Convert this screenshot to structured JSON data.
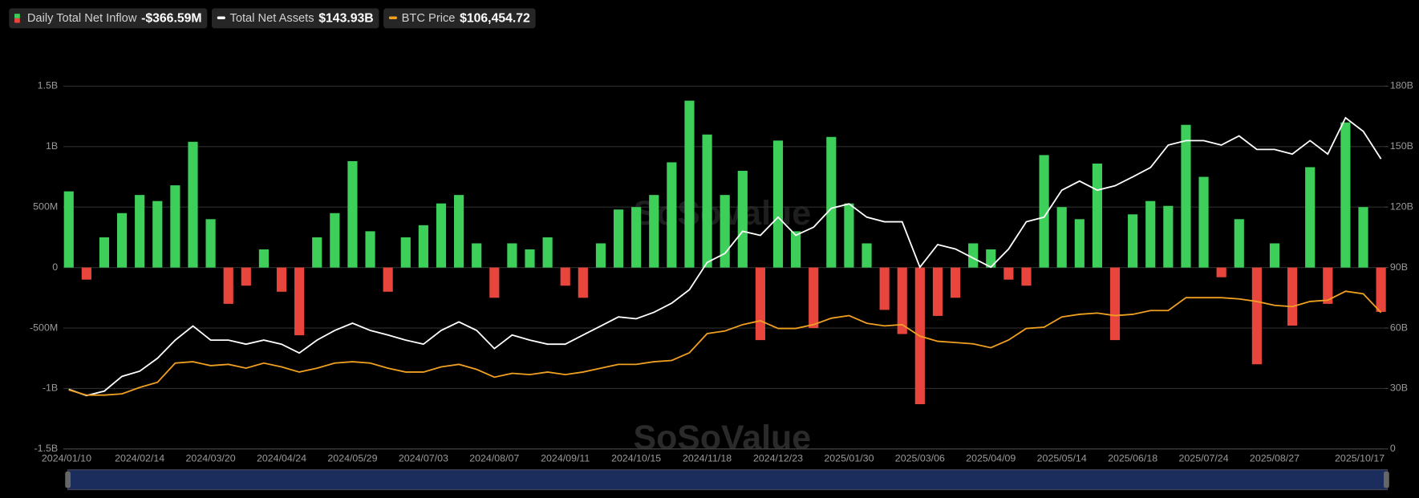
{
  "chart_data": {
    "type": "bar-line",
    "watermark": "SoSoValue",
    "categories": [
      "2024/01/10",
      null,
      null,
      null,
      "2024/02/14",
      null,
      null,
      null,
      "2024/03/20",
      null,
      null,
      null,
      "2024/04/24",
      null,
      null,
      null,
      "2024/05/29",
      null,
      null,
      null,
      "2024/07/03",
      null,
      null,
      null,
      "2024/08/07",
      null,
      null,
      null,
      "2024/09/11",
      null,
      null,
      null,
      "2024/10/15",
      null,
      null,
      null,
      "2024/11/18",
      null,
      null,
      null,
      "2024/12/23",
      null,
      null,
      null,
      "2025/01/30",
      null,
      null,
      null,
      "2025/03/06",
      null,
      null,
      null,
      "2025/04/09",
      null,
      null,
      null,
      "2025/05/14",
      null,
      null,
      null,
      "2025/06/18",
      null,
      null,
      null,
      "2025/07/24",
      null,
      null,
      null,
      "2025/08/27",
      null,
      null,
      null,
      null,
      null,
      "2025/10/17"
    ],
    "ylim": [
      -1500000000,
      1500000000
    ],
    "yticks": [
      {
        "value": -1500000000,
        "label": "-1.5B"
      },
      {
        "value": -1000000000,
        "label": "-1B"
      },
      {
        "value": -500000000,
        "label": "-500M"
      },
      0,
      {
        "value": 500000000,
        "label": "500M"
      },
      {
        "value": 1000000000,
        "label": "1B"
      },
      {
        "value": 1500000000,
        "label": "1.5B"
      }
    ],
    "y2lim": [
      0,
      180000000000
    ],
    "y2ticks": [
      0,
      {
        "value": 30000000000,
        "label": "30B"
      },
      {
        "value": 60000000000,
        "label": "60B"
      },
      {
        "value": 90000000000,
        "label": "90B"
      },
      {
        "value": 120000000000,
        "label": "120B"
      },
      {
        "value": 150000000000,
        "label": "150B"
      },
      {
        "value": 180000000000,
        "label": "180B"
      }
    ],
    "y3lim": [
      0,
      283000
    ],
    "grid": true,
    "series": [
      {
        "name": "Daily Total Net Inflow",
        "type": "bar",
        "color": "#3ecf5a",
        "negative_color": "#e8453c",
        "latest_label": "-$366.59M",
        "values": [
          630000000,
          -100000000,
          250000000,
          450000000,
          600000000,
          550000000,
          680000000,
          1040000000,
          400000000,
          -300000000,
          -150000000,
          150000000,
          -200000000,
          -560000000,
          250000000,
          450000000,
          880000000,
          300000000,
          -200000000,
          250000000,
          350000000,
          530000000,
          600000000,
          200000000,
          -250000000,
          200000000,
          150000000,
          250000000,
          -150000000,
          -250000000,
          200000000,
          480000000,
          500000000,
          600000000,
          870000000,
          1380000000,
          1100000000,
          600000000,
          800000000,
          -600000000,
          1050000000,
          300000000,
          -500000000,
          1080000000,
          530000000,
          200000000,
          -350000000,
          -550000000,
          -1130000000,
          -400000000,
          -250000000,
          200000000,
          150000000,
          -100000000,
          -150000000,
          930000000,
          500000000,
          400000000,
          860000000,
          -600000000,
          440000000,
          550000000,
          510000000,
          1180000000,
          750000000,
          -80000000,
          400000000,
          -800000000,
          200000000,
          -480000000,
          830000000,
          -300000000,
          1200000000,
          500000000,
          -366590000
        ]
      },
      {
        "name": "Total Net Assets",
        "type": "line",
        "axis": "y2",
        "color": "#ffffff",
        "latest_label": "$143.93B",
        "values": [
          29600000000,
          26500000000,
          28700000000,
          36000000000,
          38600000000,
          45000000000,
          54000000000,
          61000000000,
          54000000000,
          54000000000,
          52000000000,
          54000000000,
          52000000000,
          47600000000,
          54000000000,
          58800000000,
          62400000000,
          58800000000,
          56500000000,
          54000000000,
          52000000000,
          58800000000,
          63000000000,
          58800000000,
          49800000000,
          56500000000,
          54000000000,
          52000000000,
          52000000000,
          56500000000,
          61000000000,
          65500000000,
          64600000000,
          67800000000,
          72300000000,
          79000000000,
          92500000000,
          97000000000,
          108000000000,
          106000000000,
          115000000000,
          106000000000,
          110000000000,
          119400000000,
          121600000000,
          115000000000,
          112700000000,
          112700000000,
          90200000000,
          101400000000,
          99200000000,
          94700000000,
          90200000000,
          99200000000,
          112700000000,
          115000000000,
          128400000000,
          132900000000,
          128400000000,
          130600000000,
          135000000000,
          139600000000,
          150800000000,
          153000000000,
          153000000000,
          150800000000,
          155300000000,
          148600000000,
          148600000000,
          146300000000,
          153000000000,
          146300000000,
          164300000000,
          157600000000,
          143930000000
        ]
      },
      {
        "name": "BTC Price",
        "type": "line",
        "axis": "y3",
        "color": "#f0a020",
        "latest_label": "$106,454.72",
        "values": [
          46000,
          42000,
          42000,
          43000,
          48000,
          52000,
          67000,
          68000,
          65000,
          66000,
          63000,
          67000,
          64000,
          60000,
          63000,
          67000,
          68000,
          67000,
          63000,
          60000,
          60000,
          64000,
          66000,
          62000,
          56000,
          59000,
          58000,
          60000,
          58000,
          60000,
          63000,
          66000,
          66000,
          68000,
          69000,
          75000,
          90000,
          92000,
          97000,
          100000,
          94000,
          94000,
          97000,
          102000,
          104000,
          98000,
          96000,
          97000,
          88000,
          84000,
          83000,
          82000,
          79000,
          85000,
          94000,
          95000,
          103000,
          105000,
          106000,
          104000,
          105000,
          108000,
          108000,
          118000,
          118000,
          118000,
          117000,
          115000,
          112000,
          111000,
          115000,
          116000,
          123000,
          121000,
          106454.72
        ]
      }
    ]
  }
}
